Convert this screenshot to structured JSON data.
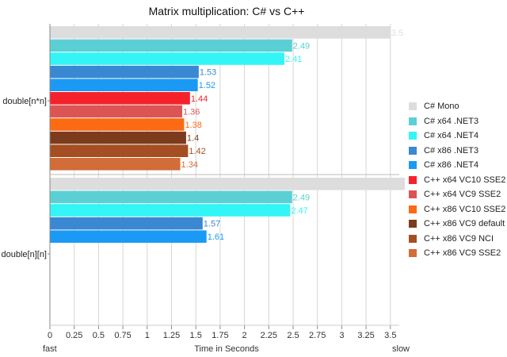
{
  "chart_data": {
    "type": "bar",
    "orientation": "horizontal",
    "title": "Matrix multiplication: C# vs C++",
    "xlabel": "Time in Seconds",
    "x_left_label": "fast",
    "x_right_label": "slow",
    "xlim": [
      0,
      3.6
    ],
    "xticks": [
      "0",
      "0.25",
      "0.5",
      "0.75",
      "1",
      "1.25",
      "1.5",
      "1.75",
      "2",
      "2.25",
      "2.5",
      "2.75",
      "3",
      "3.25",
      "3.5"
    ],
    "grid": true,
    "legend_position": "right",
    "categories": [
      "double[n*n]",
      "double[n][n]"
    ],
    "series": [
      {
        "name": "C# Mono",
        "color": "#dddddd",
        "values": [
          3.5,
          3.65
        ],
        "labels": [
          "3.5",
          ""
        ]
      },
      {
        "name": "C# x64 .NET3",
        "color": "#5bd0d4",
        "values": [
          2.49,
          2.49
        ],
        "labels": [
          "2.49",
          "2.49"
        ]
      },
      {
        "name": "C# x64 .NET4",
        "color": "#33f5f5",
        "values": [
          2.41,
          2.47
        ],
        "labels": [
          "2.41",
          "2.47"
        ]
      },
      {
        "name": "C# x86 .NET3",
        "color": "#3a88d2",
        "values": [
          1.53,
          1.57
        ],
        "labels": [
          "1.53",
          "1.57"
        ]
      },
      {
        "name": "C# x86 .NET4",
        "color": "#1a9af5",
        "values": [
          1.52,
          1.61
        ],
        "labels": [
          "1.52",
          "1.61"
        ]
      },
      {
        "name": "C++ x64 VC10 SSE2",
        "color": "#f5222b",
        "values": [
          1.44,
          null
        ],
        "labels": [
          "1.44",
          ""
        ]
      },
      {
        "name": "C++ x64 VC9 SSE2",
        "color": "#dc5555",
        "values": [
          1.36,
          null
        ],
        "labels": [
          "1.36",
          ""
        ]
      },
      {
        "name": "C++ x86 VC10 SSE2",
        "color": "#fc6a14",
        "values": [
          1.38,
          null
        ],
        "labels": [
          "1.38",
          ""
        ]
      },
      {
        "name": "C++ x86 VC9 default",
        "color": "#7c3b1c",
        "values": [
          1.4,
          null
        ],
        "labels": [
          "1.4",
          ""
        ]
      },
      {
        "name": "C++ x86 VC9 NCI",
        "color": "#a44e22",
        "values": [
          1.42,
          null
        ],
        "labels": [
          "1.42",
          ""
        ]
      },
      {
        "name": "C++ x86 VC9 SSE2",
        "color": "#d26c38",
        "values": [
          1.34,
          null
        ],
        "labels": [
          "1.34",
          ""
        ]
      }
    ]
  }
}
